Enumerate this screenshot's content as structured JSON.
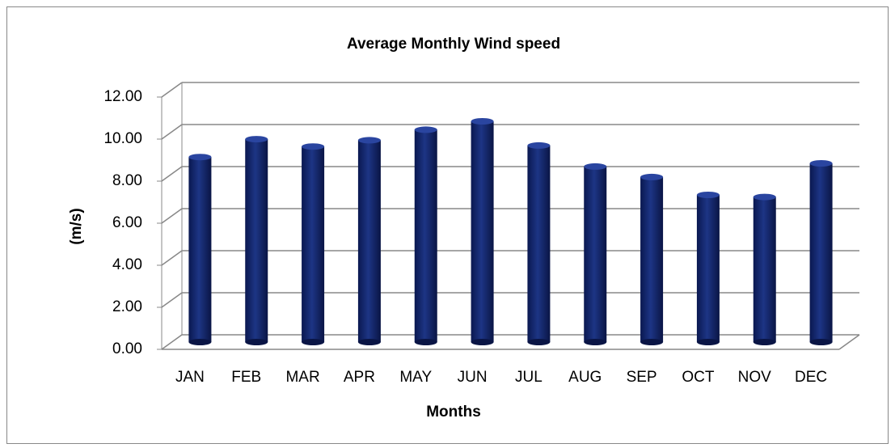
{
  "chart_data": {
    "type": "bar",
    "title": "Average Monthly Wind speed",
    "x_label": "Months",
    "y_label": "(m/s)",
    "categories": [
      "JAN",
      "FEB",
      "MAR",
      "APR",
      "MAY",
      "JUN",
      "JUL",
      "AUG",
      "SEP",
      "OCT",
      "NOV",
      "DEC"
    ],
    "values": [
      8.8,
      9.65,
      9.3,
      9.6,
      10.1,
      10.5,
      9.35,
      8.35,
      7.85,
      7.0,
      6.9,
      8.5
    ],
    "color": "#13266b",
    "ylim": [
      0,
      12
    ],
    "yticks": [
      {
        "value": 0,
        "label": "0.00"
      },
      {
        "value": 2,
        "label": "2.00"
      },
      {
        "value": 4,
        "label": "4.00"
      },
      {
        "value": 6,
        "label": "6.00"
      },
      {
        "value": 8,
        "label": "8.00"
      },
      {
        "value": 10,
        "label": "10.00"
      },
      {
        "value": 12,
        "label": "12.00"
      }
    ],
    "grid": true
  }
}
